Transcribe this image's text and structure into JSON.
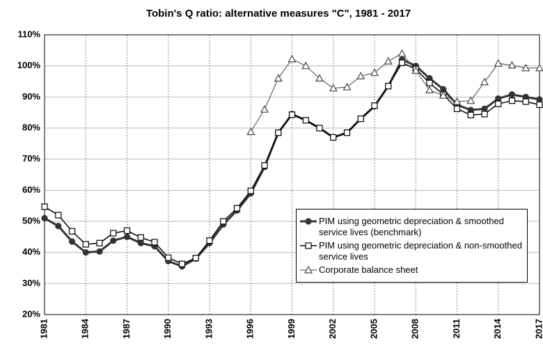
{
  "chart_data": {
    "type": "line",
    "title": "Tobin's Q ratio: alternative measures \"C\", 1981 - 2017",
    "x": [
      1981,
      1982,
      1983,
      1984,
      1985,
      1986,
      1987,
      1988,
      1989,
      1990,
      1991,
      1992,
      1993,
      1994,
      1995,
      1996,
      1997,
      1998,
      1999,
      2000,
      2001,
      2002,
      2003,
      2004,
      2005,
      2006,
      2007,
      2008,
      2009,
      2010,
      2011,
      2012,
      2013,
      2014,
      2015,
      2016,
      2017
    ],
    "series": [
      {
        "name": "PIM using geometric depreciation & smoothed service lives (benchmark)",
        "color": "#333333",
        "marker": "circle",
        "values": [
          51,
          48.5,
          43.5,
          40,
          40.3,
          43.8,
          45,
          43,
          42,
          37.2,
          35.5,
          38,
          43,
          49,
          53.5,
          59,
          67.5,
          78.5,
          84.5,
          82.5,
          80,
          77,
          78.5,
          83,
          87,
          93.5,
          102,
          100,
          96,
          92.5,
          87.5,
          85.8,
          86.2,
          89.5,
          90.8,
          90,
          89.2
        ]
      },
      {
        "name": "PIM using geometric depreciation & non-smoothed service lives",
        "color": "#000000",
        "marker": "square",
        "values": [
          54.7,
          52,
          46.8,
          42.6,
          43,
          46.2,
          47,
          44.8,
          43.3,
          38.3,
          36.3,
          38.2,
          43.8,
          50,
          54.2,
          59.8,
          68,
          78.5,
          84.3,
          82.5,
          80,
          77,
          78.5,
          83,
          87.2,
          93.5,
          101,
          99,
          94.5,
          90.8,
          86.2,
          84.2,
          84.5,
          87.8,
          88.8,
          88.5,
          87.5
        ]
      },
      {
        "name": "Corporate balance sheet",
        "color": "#444444",
        "marker": "triangle",
        "values": [
          null,
          null,
          null,
          null,
          null,
          null,
          null,
          null,
          null,
          null,
          null,
          null,
          null,
          null,
          null,
          78.8,
          86,
          96,
          102.2,
          100,
          96,
          92.8,
          93.2,
          96.7,
          97.8,
          101.5,
          104,
          98.5,
          92.2,
          90.5,
          88.5,
          88.8,
          94.8,
          100.8,
          100.2,
          99.3,
          99.3
        ]
      }
    ],
    "xlim": [
      1981,
      2017
    ],
    "xticks": [
      1981,
      1984,
      1987,
      1990,
      1993,
      1996,
      1999,
      2002,
      2005,
      2008,
      2011,
      2014,
      2017
    ],
    "ylim": [
      20,
      110
    ],
    "yticks": [
      {
        "value": 20,
        "label": "20%"
      },
      {
        "value": 30,
        "label": "30%"
      },
      {
        "value": 40,
        "label": "40%"
      },
      {
        "value": 50,
        "label": "50%"
      },
      {
        "value": 60,
        "label": "60%"
      },
      {
        "value": 70,
        "label": "70%"
      },
      {
        "value": 80,
        "label": "80%"
      },
      {
        "value": 90,
        "label": "90%"
      },
      {
        "value": 100,
        "label": "100%"
      },
      {
        "value": 110,
        "label": "110%"
      }
    ],
    "grid": true,
    "legend": "lower right"
  }
}
